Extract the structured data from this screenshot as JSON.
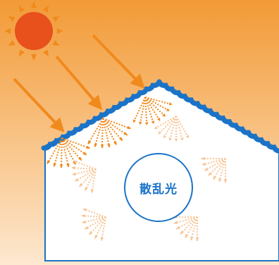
{
  "diagram": {
    "center_label": "散乱光",
    "elements": [
      "sun",
      "sun-rays",
      "house-roof",
      "house-wall",
      "scatter-bursts"
    ]
  },
  "colors": {
    "background_top": "#f29a36",
    "background_bottom": "#fde8d0",
    "sun": "#e8501c",
    "sun_rays": "#f08a1c",
    "incoming_rays": "#f08a1c",
    "roof": "#1a73c7",
    "wall_fill": "#ffffff",
    "wall_stroke": "#1a73c7",
    "scatter_strong": "#f08a1c",
    "scatter_faint": "#f7c08c",
    "label": "#1a73c7"
  }
}
